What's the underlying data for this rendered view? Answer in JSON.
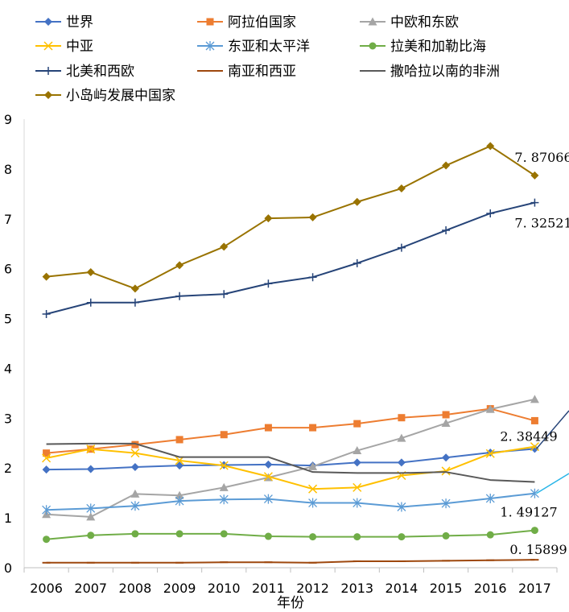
{
  "chart_data": {
    "type": "line",
    "title": "",
    "xlabel": "年份",
    "ylabel": "",
    "categories": [
      "2006",
      "2007",
      "2008",
      "2009",
      "2010",
      "2011",
      "2012",
      "2013",
      "2014",
      "2015",
      "2016",
      "2017"
    ],
    "ylim": [
      0,
      9
    ],
    "yticks": [
      "0",
      "1",
      "2",
      "3",
      "4",
      "5",
      "6",
      "7",
      "8",
      "9"
    ],
    "grid": false,
    "legend_position": "top",
    "series": [
      {
        "name": "世界",
        "color": "#4472C4",
        "marker": "diamond",
        "values": [
          1.97,
          1.98,
          2.02,
          2.05,
          2.06,
          2.07,
          2.05,
          2.11,
          2.11,
          2.21,
          2.31,
          2.38449
        ]
      },
      {
        "name": "阿拉伯国家",
        "color": "#ED7D31",
        "marker": "square",
        "values": [
          2.3,
          2.38,
          2.47,
          2.57,
          2.67,
          2.81,
          2.81,
          2.89,
          3.01,
          3.07,
          3.19,
          2.95
        ]
      },
      {
        "name": "中欧和东欧",
        "color": "#A5A5A5",
        "marker": "triangle",
        "values": [
          1.07,
          1.02,
          1.48,
          1.45,
          1.61,
          1.81,
          2.03,
          2.35,
          2.6,
          2.9,
          3.18,
          3.38
        ]
      },
      {
        "name": "中亚",
        "color": "#FFC000",
        "marker": "x",
        "values": [
          2.2,
          2.38,
          2.3,
          2.15,
          2.05,
          1.83,
          1.58,
          1.61,
          1.85,
          1.94,
          2.29,
          2.43
        ]
      },
      {
        "name": "东亚和太平洋",
        "color": "#5B9BD5",
        "marker": "star",
        "values": [
          1.16,
          1.19,
          1.24,
          1.34,
          1.37,
          1.38,
          1.3,
          1.3,
          1.22,
          1.29,
          1.39,
          1.49127
        ]
      },
      {
        "name": "拉美和加勒比海",
        "color": "#70AD47",
        "marker": "circle",
        "values": [
          0.57,
          0.65,
          0.68,
          0.68,
          0.68,
          0.63,
          0.62,
          0.62,
          0.62,
          0.64,
          0.66,
          0.75
        ]
      },
      {
        "name": "北美和西欧",
        "color": "#264478",
        "marker": "plus",
        "values": [
          5.09,
          5.32,
          5.32,
          5.45,
          5.49,
          5.7,
          5.83,
          6.11,
          6.42,
          6.77,
          7.11,
          7.32521
        ]
      },
      {
        "name": "南亚和西亚",
        "color": "#9E480E",
        "marker": "dash",
        "values": [
          0.1,
          0.1,
          0.1,
          0.1,
          0.11,
          0.11,
          0.1,
          0.13,
          0.13,
          0.14,
          0.15,
          0.15899
        ]
      },
      {
        "name": "撒哈拉以南的非洲",
        "color": "#595959",
        "marker": "none",
        "values": [
          2.48,
          2.49,
          2.49,
          2.22,
          2.22,
          2.22,
          1.92,
          1.9,
          1.9,
          1.92,
          1.76,
          1.72
        ]
      },
      {
        "name": "小岛屿发展中国家",
        "color": "#997300",
        "marker": "diamond",
        "values": [
          5.84,
          5.93,
          5.6,
          6.07,
          6.44,
          7.01,
          7.03,
          7.34,
          7.61,
          8.07,
          8.46,
          7.87066
        ]
      }
    ],
    "data_labels": [
      {
        "series": "小岛屿发展中国家",
        "category": "2017",
        "text": "7. 87066"
      },
      {
        "series": "北美和西欧",
        "category": "2017",
        "text": "7. 32521"
      },
      {
        "series": "世界",
        "category": "2017",
        "text": "2. 38449"
      },
      {
        "series": "东亚和太平洋",
        "category": "2017",
        "text": "1. 49127"
      },
      {
        "series": "南亚和西亚",
        "category": "2017",
        "text": "0. 15899"
      }
    ]
  }
}
